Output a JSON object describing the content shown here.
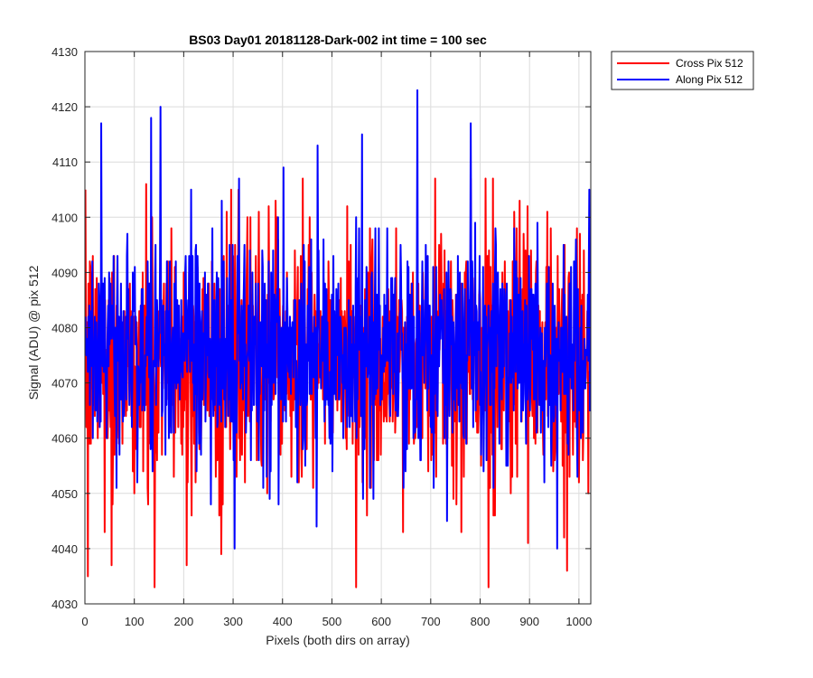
{
  "chart_data": {
    "type": "line",
    "title": "BS03 Day01 20181128-Dark-002 int time = 100 sec",
    "xlabel": "Pixels (both dirs on array)",
    "ylabel": "Signal (ADU) @ pix 512",
    "xlim": [
      0,
      1024
    ],
    "ylim": [
      4030,
      4130
    ],
    "xticks": [
      0,
      100,
      200,
      300,
      400,
      500,
      600,
      700,
      800,
      900,
      1000
    ],
    "yticks": [
      4030,
      4040,
      4050,
      4060,
      4070,
      4080,
      4090,
      4100,
      4110,
      4120,
      4130
    ],
    "grid": true,
    "legend_location": "outside-top-right",
    "n_points": 1024,
    "series": [
      {
        "name": "Cross Pix 512",
        "color": "#ff0000",
        "mean": 4074,
        "min": 4033,
        "max": 4107,
        "notable_points": [
          {
            "x": 5,
            "y": 4035
          },
          {
            "x": 140,
            "y": 4033
          },
          {
            "x": 205,
            "y": 4037
          },
          {
            "x": 440,
            "y": 4107
          },
          {
            "x": 810,
            "y": 4107
          },
          {
            "x": 975,
            "y": 4036
          }
        ]
      },
      {
        "name": "Along Pix 512",
        "color": "#0000ff",
        "mean": 4076,
        "min": 4040,
        "max": 4123,
        "notable_points": [
          {
            "x": 32,
            "y": 4117
          },
          {
            "x": 133,
            "y": 4118
          },
          {
            "x": 152,
            "y": 4120
          },
          {
            "x": 302,
            "y": 4040
          },
          {
            "x": 470,
            "y": 4113
          },
          {
            "x": 560,
            "y": 4115
          },
          {
            "x": 672,
            "y": 4123
          },
          {
            "x": 780,
            "y": 4117
          },
          {
            "x": 955,
            "y": 4040
          },
          {
            "x": 1020,
            "y": 4105
          }
        ]
      }
    ]
  }
}
